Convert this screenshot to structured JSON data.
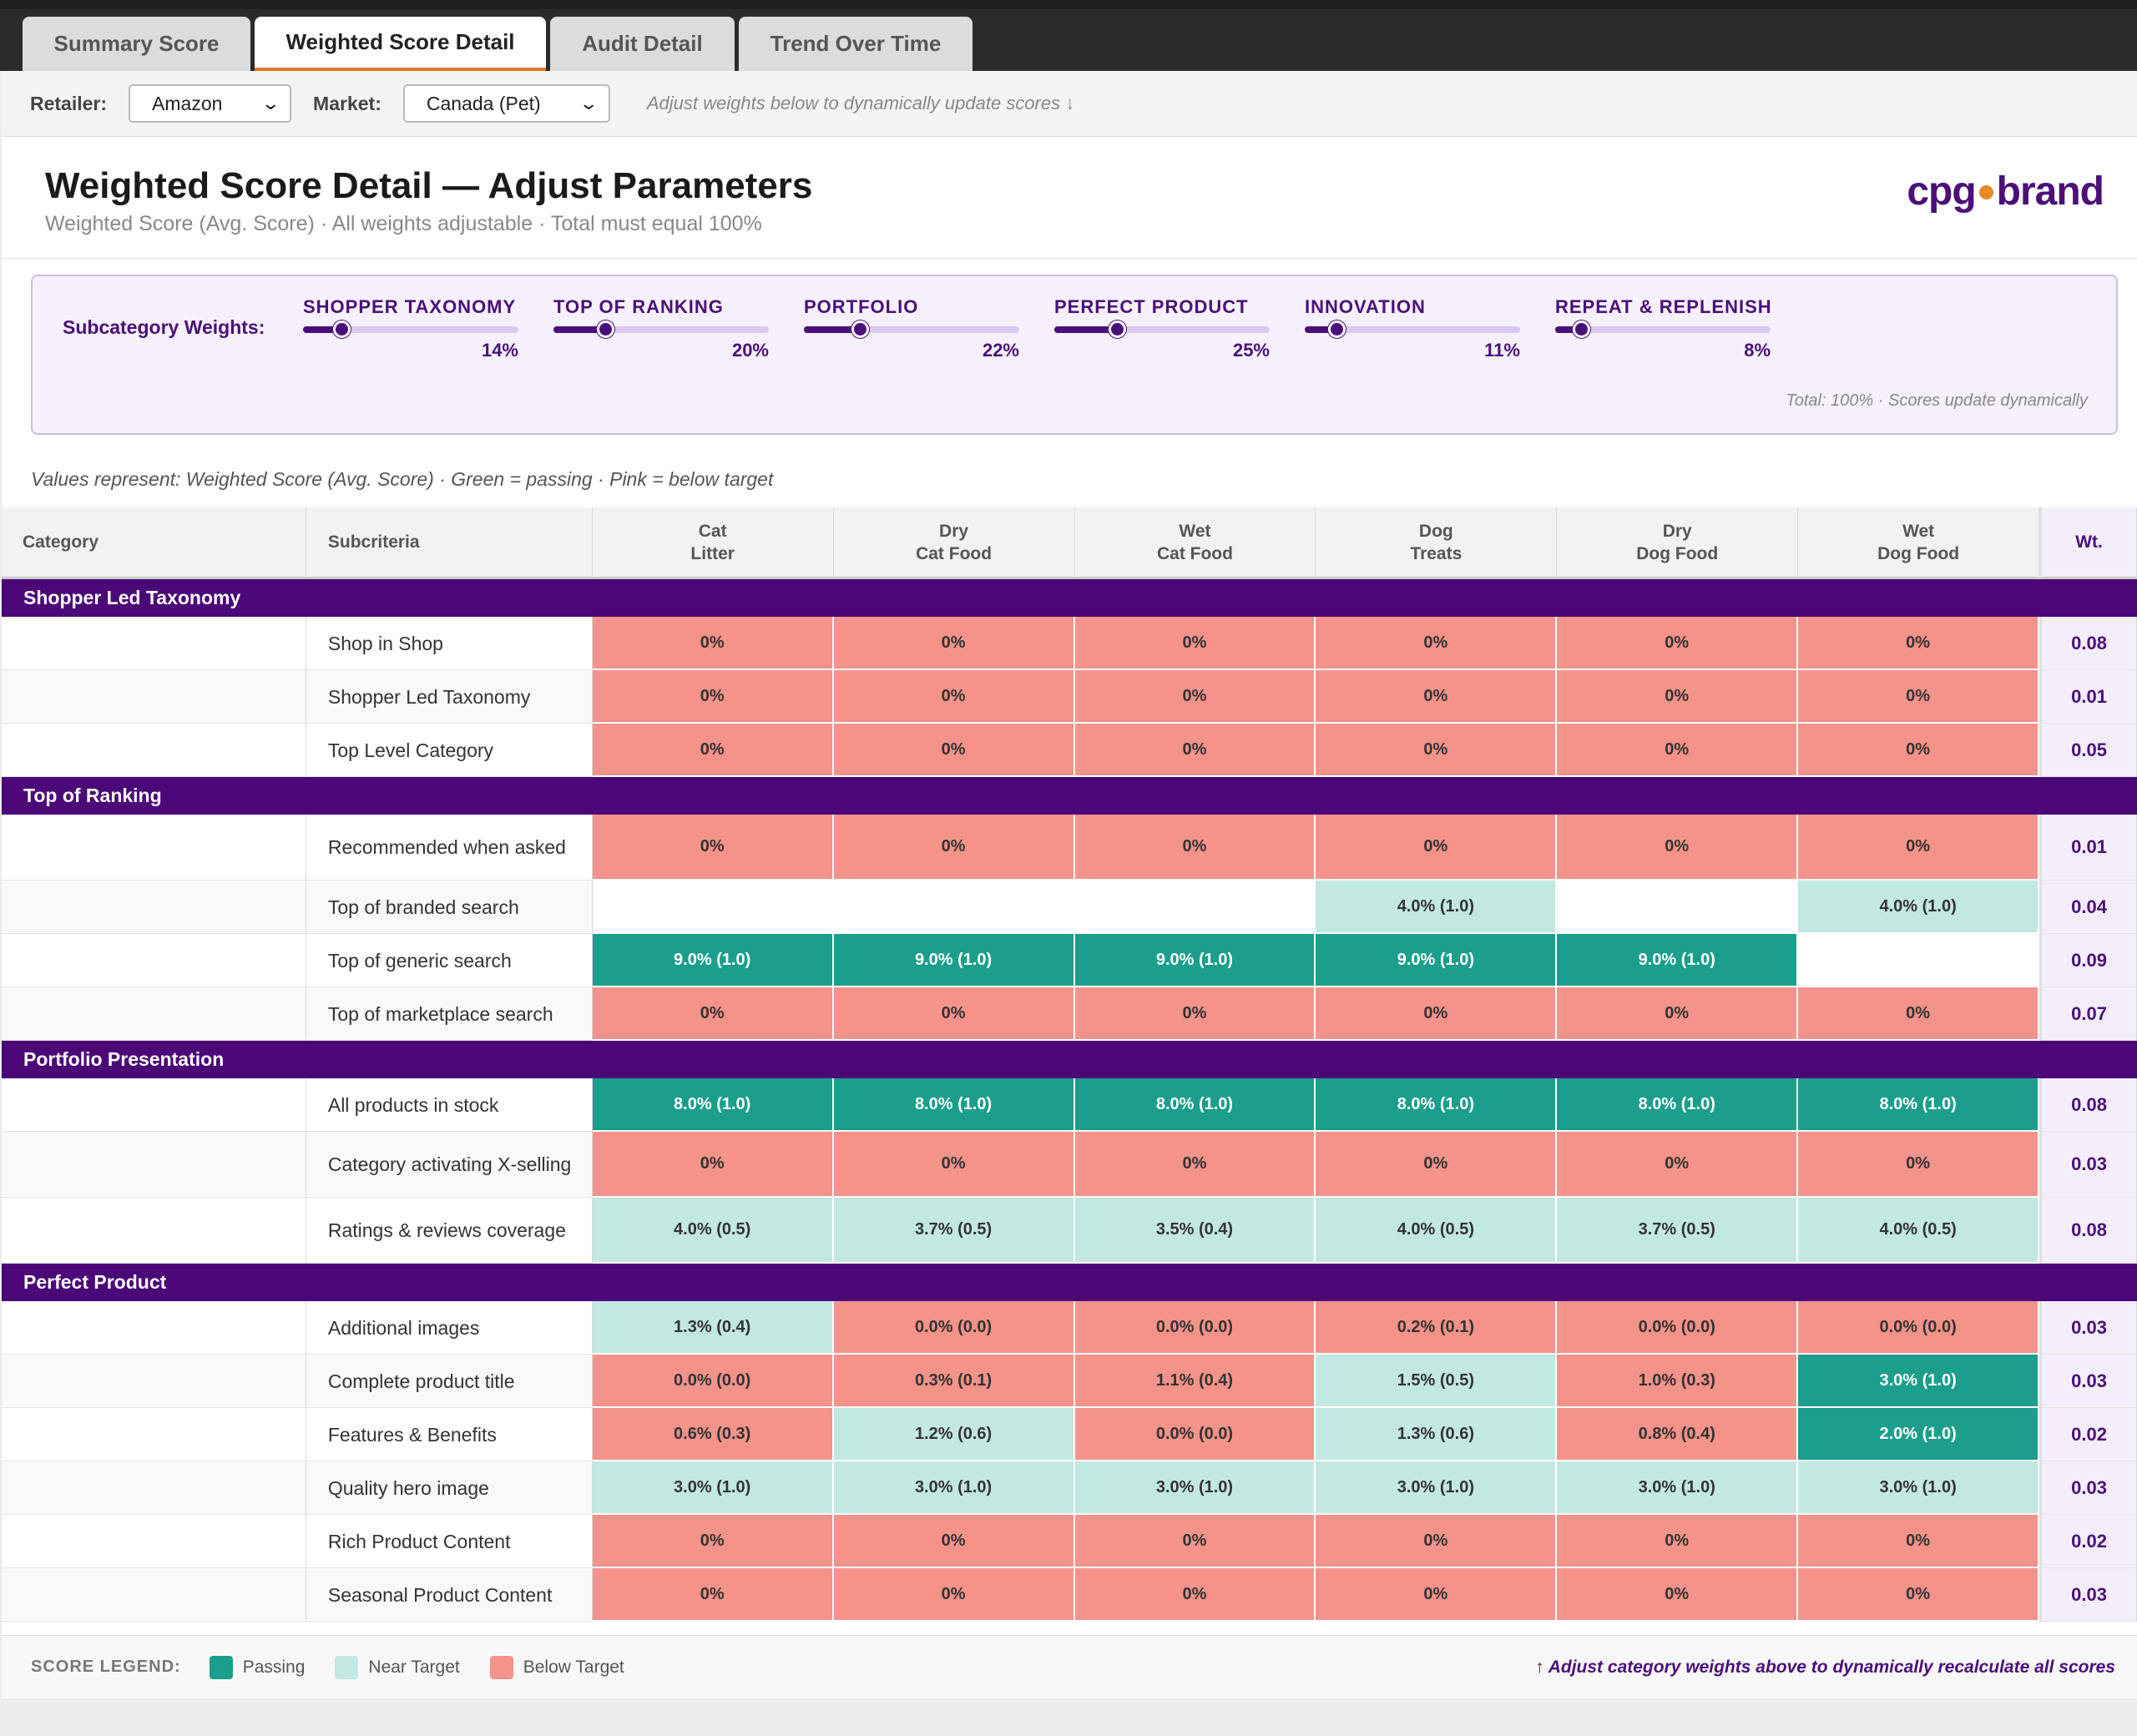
{
  "tabs": [
    {
      "label": "Summary Score",
      "active": false
    },
    {
      "label": "Weighted Score Detail",
      "active": true
    },
    {
      "label": "Audit Detail",
      "active": false
    },
    {
      "label": "Trend Over Time",
      "active": false
    }
  ],
  "filters": {
    "retailer_label": "Retailer:",
    "retailer_value": "Amazon",
    "market_label": "Market:",
    "market_value": "Canada (Pet)",
    "hint": "Adjust weights below to dynamically update scores ↓"
  },
  "header": {
    "title": "Weighted Score Detail — Adjust Parameters",
    "subtitle": "Weighted Score (Avg. Score) · All weights adjustable · Total must equal 100%",
    "logo_left": "cpg",
    "logo_right": "brand"
  },
  "weights": {
    "label": "Subcategory Weights:",
    "items": [
      {
        "name": "SHOPPER TAXONOMY",
        "value": "14%",
        "level": 0.14
      },
      {
        "name": "TOP OF RANKING",
        "value": "20%",
        "level": 0.2
      },
      {
        "name": "PORTFOLIO",
        "value": "22%",
        "level": 0.22
      },
      {
        "name": "PERFECT PRODUCT",
        "value": "25%",
        "level": 0.25
      },
      {
        "name": "INNOVATION",
        "value": "11%",
        "level": 0.11
      },
      {
        "name": "REPEAT & REPLENISH",
        "value": "8%",
        "level": 0.08
      }
    ],
    "total": "Total: 100% · Scores update dynamically"
  },
  "values_note": "Values represent: Weighted Score (Avg. Score) · Green = passing · Pink = below target",
  "table": {
    "headers": {
      "category": "Category",
      "subcriteria": "Subcriteria",
      "columns": [
        {
          "l1": "Cat",
          "l2": "Litter"
        },
        {
          "l1": "Dry",
          "l2": "Cat Food"
        },
        {
          "l1": "Wet",
          "l2": "Cat Food"
        },
        {
          "l1": "Dog",
          "l2": "Treats"
        },
        {
          "l1": "Dry",
          "l2": "Dog Food"
        },
        {
          "l1": "Wet",
          "l2": "Dog Food"
        }
      ],
      "weight": "Wt."
    },
    "groups": [
      {
        "name": "Shopper Led Taxonomy",
        "rows": [
          {
            "sub": "Shop in Shop",
            "wt": "0.08",
            "cells": [
              [
                "0%",
                "below"
              ],
              [
                "0%",
                "below"
              ],
              [
                "0%",
                "below"
              ],
              [
                "0%",
                "below"
              ],
              [
                "0%",
                "below"
              ],
              [
                "0%",
                "below"
              ]
            ]
          },
          {
            "sub": "Shopper Led Taxonomy",
            "wt": "0.01",
            "cells": [
              [
                "0%",
                "below"
              ],
              [
                "0%",
                "below"
              ],
              [
                "0%",
                "below"
              ],
              [
                "0%",
                "below"
              ],
              [
                "0%",
                "below"
              ],
              [
                "0%",
                "below"
              ]
            ]
          },
          {
            "sub": "Top Level Category",
            "wt": "0.05",
            "cells": [
              [
                "0%",
                "below"
              ],
              [
                "0%",
                "below"
              ],
              [
                "0%",
                "below"
              ],
              [
                "0%",
                "below"
              ],
              [
                "0%",
                "below"
              ],
              [
                "0%",
                "below"
              ]
            ]
          }
        ]
      },
      {
        "name": "Top of Ranking",
        "rows": [
          {
            "sub": "Recommended when asked",
            "wt": "0.01",
            "tall": true,
            "cells": [
              [
                "0%",
                "below"
              ],
              [
                "0%",
                "below"
              ],
              [
                "0%",
                "below"
              ],
              [
                "0%",
                "below"
              ],
              [
                "0%",
                "below"
              ],
              [
                "0%",
                "below"
              ]
            ]
          },
          {
            "sub": "Top of branded search",
            "wt": "0.04",
            "cells": [
              [
                "",
                "blank"
              ],
              [
                "",
                "blank"
              ],
              [
                "",
                "blank"
              ],
              [
                "4.0% (1.0)",
                "near"
              ],
              [
                "",
                "blank"
              ],
              [
                "4.0% (1.0)",
                "near"
              ]
            ]
          },
          {
            "sub": "Top of generic search",
            "wt": "0.09",
            "cells": [
              [
                "9.0% (1.0)",
                "pass"
              ],
              [
                "9.0% (1.0)",
                "pass"
              ],
              [
                "9.0% (1.0)",
                "pass"
              ],
              [
                "9.0% (1.0)",
                "pass"
              ],
              [
                "9.0% (1.0)",
                "pass"
              ],
              [
                "",
                "blank"
              ]
            ]
          },
          {
            "sub": "Top of marketplace search",
            "wt": "0.07",
            "cells": [
              [
                "0%",
                "below"
              ],
              [
                "0%",
                "below"
              ],
              [
                "0%",
                "below"
              ],
              [
                "0%",
                "below"
              ],
              [
                "0%",
                "below"
              ],
              [
                "0%",
                "below"
              ]
            ]
          }
        ]
      },
      {
        "name": "Portfolio Presentation",
        "rows": [
          {
            "sub": "All products in stock",
            "wt": "0.08",
            "cells": [
              [
                "8.0% (1.0)",
                "pass"
              ],
              [
                "8.0% (1.0)",
                "pass"
              ],
              [
                "8.0% (1.0)",
                "pass"
              ],
              [
                "8.0% (1.0)",
                "pass"
              ],
              [
                "8.0% (1.0)",
                "pass"
              ],
              [
                "8.0% (1.0)",
                "pass"
              ]
            ]
          },
          {
            "sub": "Category activating X-selling",
            "wt": "0.03",
            "tall": true,
            "cells": [
              [
                "0%",
                "below"
              ],
              [
                "0%",
                "below"
              ],
              [
                "0%",
                "below"
              ],
              [
                "0%",
                "below"
              ],
              [
                "0%",
                "below"
              ],
              [
                "0%",
                "below"
              ]
            ]
          },
          {
            "sub": "Ratings & reviews coverage",
            "wt": "0.08",
            "tall": true,
            "cells": [
              [
                "4.0% (0.5)",
                "near"
              ],
              [
                "3.7% (0.5)",
                "near"
              ],
              [
                "3.5% (0.4)",
                "near"
              ],
              [
                "4.0% (0.5)",
                "near"
              ],
              [
                "3.7% (0.5)",
                "near"
              ],
              [
                "4.0% (0.5)",
                "near"
              ]
            ]
          }
        ]
      },
      {
        "name": "Perfect Product",
        "rows": [
          {
            "sub": "Additional images",
            "wt": "0.03",
            "cells": [
              [
                "1.3% (0.4)",
                "near"
              ],
              [
                "0.0% (0.0)",
                "below"
              ],
              [
                "0.0% (0.0)",
                "below"
              ],
              [
                "0.2% (0.1)",
                "below"
              ],
              [
                "0.0% (0.0)",
                "below"
              ],
              [
                "0.0% (0.0)",
                "below"
              ]
            ]
          },
          {
            "sub": "Complete product title",
            "wt": "0.03",
            "cells": [
              [
                "0.0% (0.0)",
                "below"
              ],
              [
                "0.3% (0.1)",
                "below"
              ],
              [
                "1.1% (0.4)",
                "below"
              ],
              [
                "1.5% (0.5)",
                "near"
              ],
              [
                "1.0% (0.3)",
                "below"
              ],
              [
                "3.0% (1.0)",
                "pass"
              ]
            ]
          },
          {
            "sub": "Features & Benefits",
            "wt": "0.02",
            "cells": [
              [
                "0.6% (0.3)",
                "below"
              ],
              [
                "1.2% (0.6)",
                "near"
              ],
              [
                "0.0% (0.0)",
                "below"
              ],
              [
                "1.3% (0.6)",
                "near"
              ],
              [
                "0.8% (0.4)",
                "below"
              ],
              [
                "2.0% (1.0)",
                "pass"
              ]
            ]
          },
          {
            "sub": "Quality hero image",
            "wt": "0.03",
            "cells": [
              [
                "3.0% (1.0)",
                "near"
              ],
              [
                "3.0% (1.0)",
                "near"
              ],
              [
                "3.0% (1.0)",
                "near"
              ],
              [
                "3.0% (1.0)",
                "near"
              ],
              [
                "3.0% (1.0)",
                "near"
              ],
              [
                "3.0% (1.0)",
                "near"
              ]
            ]
          },
          {
            "sub": "Rich Product Content",
            "wt": "0.02",
            "cells": [
              [
                "0%",
                "below"
              ],
              [
                "0%",
                "below"
              ],
              [
                "0%",
                "below"
              ],
              [
                "0%",
                "below"
              ],
              [
                "0%",
                "below"
              ],
              [
                "0%",
                "below"
              ]
            ]
          },
          {
            "sub": "Seasonal Product Content",
            "wt": "0.03",
            "cells": [
              [
                "0%",
                "below"
              ],
              [
                "0%",
                "below"
              ],
              [
                "0%",
                "below"
              ],
              [
                "0%",
                "below"
              ],
              [
                "0%",
                "below"
              ],
              [
                "0%",
                "below"
              ]
            ]
          }
        ]
      }
    ]
  },
  "legend": {
    "title": "SCORE LEGEND:",
    "items": [
      {
        "label": "Passing",
        "color": "#1b9e8c"
      },
      {
        "label": "Near Target",
        "color": "#c2e8e2"
      },
      {
        "label": "Below Target",
        "color": "#f4938a"
      }
    ],
    "hint": "↑ Adjust category weights above to dynamically recalculate all scores"
  },
  "colors": {
    "brand": "#4b0778",
    "accent": "#e8892a"
  }
}
